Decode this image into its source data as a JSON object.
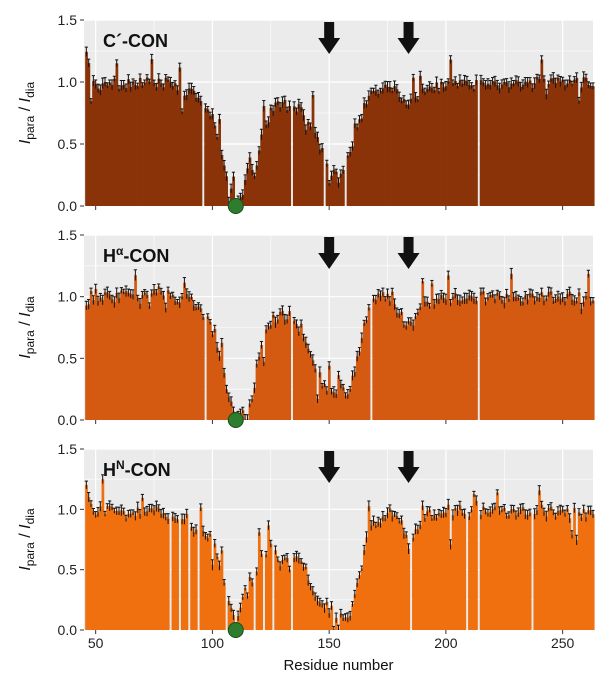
{
  "chart_data": [
    {
      "type": "bar",
      "title": {
        "main": "C",
        "sup": "",
        "suffix": "´-CON"
      },
      "ylabel": {
        "main": "I",
        "sub1": "para",
        "sep": " / ",
        "main2": "I",
        "sub2": "dia"
      },
      "xlabel": "",
      "xlim": [
        45,
        263
      ],
      "ylim": [
        0,
        1.5
      ],
      "yticks": [
        "0.0",
        "0.5",
        "1.0",
        "1.5"
      ],
      "xticks": [],
      "bar_color": "#8b3308",
      "background_color": "#ebebeb",
      "error_color": "#111111",
      "grid": true,
      "arrows_at_residue": [
        150,
        184
      ],
      "marker": {
        "residue": 110,
        "value": 0,
        "color": "#2e7d2e"
      },
      "profile": [
        [
          46,
          1.25
        ],
        [
          48,
          0.97
        ],
        [
          55,
          0.98
        ],
        [
          65,
          0.99
        ],
        [
          75,
          1.0
        ],
        [
          85,
          0.96
        ],
        [
          92,
          0.9
        ],
        [
          96,
          0.8
        ],
        [
          100,
          0.7
        ],
        [
          104,
          0.45
        ],
        [
          106,
          0.28
        ],
        [
          108,
          0.12
        ],
        [
          110,
          0.03
        ],
        [
          113,
          0.12
        ],
        [
          116,
          0.4
        ],
        [
          118,
          0.2
        ],
        [
          121,
          0.55
        ],
        [
          124,
          0.72
        ],
        [
          127,
          0.82
        ],
        [
          130,
          0.83
        ],
        [
          134,
          0.8
        ],
        [
          138,
          0.78
        ],
        [
          141,
          0.72
        ],
        [
          144,
          0.6
        ],
        [
          148,
          0.4
        ],
        [
          151,
          0.28
        ],
        [
          154,
          0.22
        ],
        [
          157,
          0.32
        ],
        [
          161,
          0.55
        ],
        [
          165,
          0.8
        ],
        [
          168,
          0.92
        ],
        [
          172,
          0.95
        ],
        [
          178,
          0.97
        ],
        [
          182,
          0.85
        ],
        [
          185,
          0.84
        ],
        [
          190,
          0.93
        ],
        [
          200,
          0.98
        ],
        [
          215,
          0.98
        ],
        [
          230,
          0.99
        ],
        [
          245,
          1.0
        ],
        [
          263,
          1.0
        ]
      ],
      "missing": [
        96,
        110,
        134,
        148,
        157,
        214
      ]
    },
    {
      "type": "bar",
      "title": {
        "main": "H",
        "sup": "α",
        "suffix": "-CON"
      },
      "ylabel": {
        "main": "I",
        "sub1": "para",
        "sep": " / ",
        "main2": "I",
        "sub2": "dia"
      },
      "xlabel": "",
      "xlim": [
        45,
        263
      ],
      "ylim": [
        0,
        1.5
      ],
      "yticks": [
        "0.0",
        "0.5",
        "1.0",
        "1.5"
      ],
      "xticks": [],
      "bar_color": "#d45a12",
      "background_color": "#ebebeb",
      "error_color": "#111111",
      "grid": true,
      "arrows_at_residue": [
        150,
        184
      ],
      "marker": {
        "residue": 110,
        "value": 0,
        "color": "#2e7d2e"
      },
      "profile": [
        [
          46,
          0.9
        ],
        [
          48,
          1.0
        ],
        [
          58,
          1.0
        ],
        [
          66,
          1.02
        ],
        [
          76,
          1.05
        ],
        [
          84,
          1.0
        ],
        [
          92,
          0.97
        ],
        [
          97,
          0.85
        ],
        [
          101,
          0.7
        ],
        [
          104,
          0.45
        ],
        [
          107,
          0.2
        ],
        [
          110,
          0.02
        ],
        [
          114,
          0.07
        ],
        [
          117,
          0.2
        ],
        [
          120,
          0.5
        ],
        [
          123,
          0.72
        ],
        [
          126,
          0.82
        ],
        [
          130,
          0.85
        ],
        [
          134,
          0.8
        ],
        [
          138,
          0.75
        ],
        [
          141,
          0.62
        ],
        [
          144,
          0.45
        ],
        [
          147,
          0.32
        ],
        [
          151,
          0.22
        ],
        [
          155,
          0.18
        ],
        [
          158,
          0.22
        ],
        [
          161,
          0.4
        ],
        [
          165,
          0.75
        ],
        [
          168,
          0.97
        ],
        [
          174,
          1.0
        ],
        [
          178,
          0.95
        ],
        [
          182,
          0.8
        ],
        [
          185,
          0.78
        ],
        [
          190,
          0.93
        ],
        [
          200,
          0.98
        ],
        [
          215,
          1.0
        ],
        [
          230,
          1.0
        ],
        [
          245,
          1.0
        ],
        [
          263,
          1.0
        ]
      ],
      "missing": [
        97,
        110,
        134,
        168,
        214
      ]
    },
    {
      "type": "bar",
      "title": {
        "main": "H",
        "sup": "N",
        "suffix": "-CON"
      },
      "ylabel": {
        "main": "I",
        "sub1": "para",
        "sep": " / ",
        "main2": "I",
        "sub2": "dia"
      },
      "xlabel": "Residue number",
      "xlim": [
        45,
        263
      ],
      "ylim": [
        0,
        1.5
      ],
      "yticks": [
        "0.0",
        "0.5",
        "1.0",
        "1.5"
      ],
      "xticks": [
        "50",
        "100",
        "150",
        "200",
        "250"
      ],
      "xtick_values": [
        50,
        100,
        150,
        200,
        250
      ],
      "bar_color": "#f07010",
      "background_color": "#ebebeb",
      "error_color": "#111111",
      "grid": true,
      "arrows_at_residue": [
        150,
        184
      ],
      "marker": {
        "residue": 110,
        "value": 0,
        "color": "#2e7d2e"
      },
      "profile": [
        [
          46,
          1.18
        ],
        [
          49,
          1.02
        ],
        [
          55,
          1.0
        ],
        [
          62,
          0.96
        ],
        [
          70,
          0.98
        ],
        [
          78,
          1.0
        ],
        [
          84,
          0.9
        ],
        [
          90,
          0.87
        ],
        [
          96,
          0.82
        ],
        [
          100,
          0.75
        ],
        [
          103,
          0.55
        ],
        [
          106,
          0.35
        ],
        [
          109,
          0.1
        ],
        [
          111,
          0.12
        ],
        [
          114,
          0.35
        ],
        [
          118,
          0.45
        ],
        [
          121,
          0.6
        ],
        [
          125,
          0.7
        ],
        [
          129,
          0.55
        ],
        [
          132,
          0.6
        ],
        [
          136,
          0.6
        ],
        [
          139,
          0.55
        ],
        [
          142,
          0.4
        ],
        [
          145,
          0.25
        ],
        [
          149,
          0.2
        ],
        [
          153,
          0.12
        ],
        [
          157,
          0.1
        ],
        [
          160,
          0.18
        ],
        [
          163,
          0.45
        ],
        [
          166,
          0.75
        ],
        [
          170,
          0.9
        ],
        [
          176,
          0.97
        ],
        [
          180,
          0.92
        ],
        [
          184,
          0.7
        ],
        [
          187,
          0.82
        ],
        [
          192,
          0.95
        ],
        [
          200,
          1.0
        ],
        [
          210,
          0.98
        ],
        [
          220,
          0.99
        ],
        [
          230,
          0.98
        ],
        [
          240,
          1.0
        ],
        [
          250,
          0.97
        ],
        [
          263,
          0.97
        ]
      ],
      "missing": [
        82,
        86,
        90,
        94,
        106,
        110,
        118,
        122,
        126,
        134,
        185,
        209,
        214,
        237
      ]
    }
  ]
}
